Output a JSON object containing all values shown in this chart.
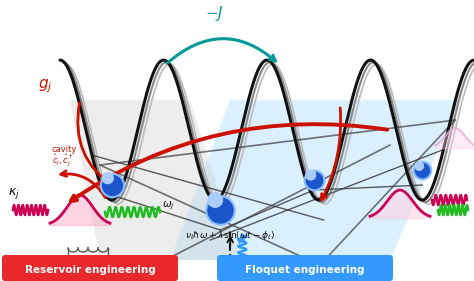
{
  "bg_color": "#ffffff",
  "label_minus_J": "$-J$",
  "label_gj": "$g_j$",
  "label_cavity": "cavity",
  "label_cj": "$\\hat{c}_j, \\hat{c}_j^\\dagger$",
  "label_kj": "$\\kappa_j$",
  "label_wj": "$\\omega_j$",
  "label_floquet_math": "$\\nu_\\ell\\hbar\\omega + \\lambda\\sin(\\omega t - \\phi_\\ell)$",
  "label_reservoir": "Reservoir engineering",
  "label_floquet_eng": "Floquet engineering",
  "reservoir_color": "#e8282a",
  "floquet_color": "#3399ff",
  "teal_color": "#009999",
  "dark_red_color": "#cc1100",
  "magenta_color": "#cc0055",
  "green_color": "#22bb22",
  "blue_ball": "#1a55cc",
  "blue_ball_hi": "#88bbff",
  "light_blue_fill": "#b0dfff"
}
